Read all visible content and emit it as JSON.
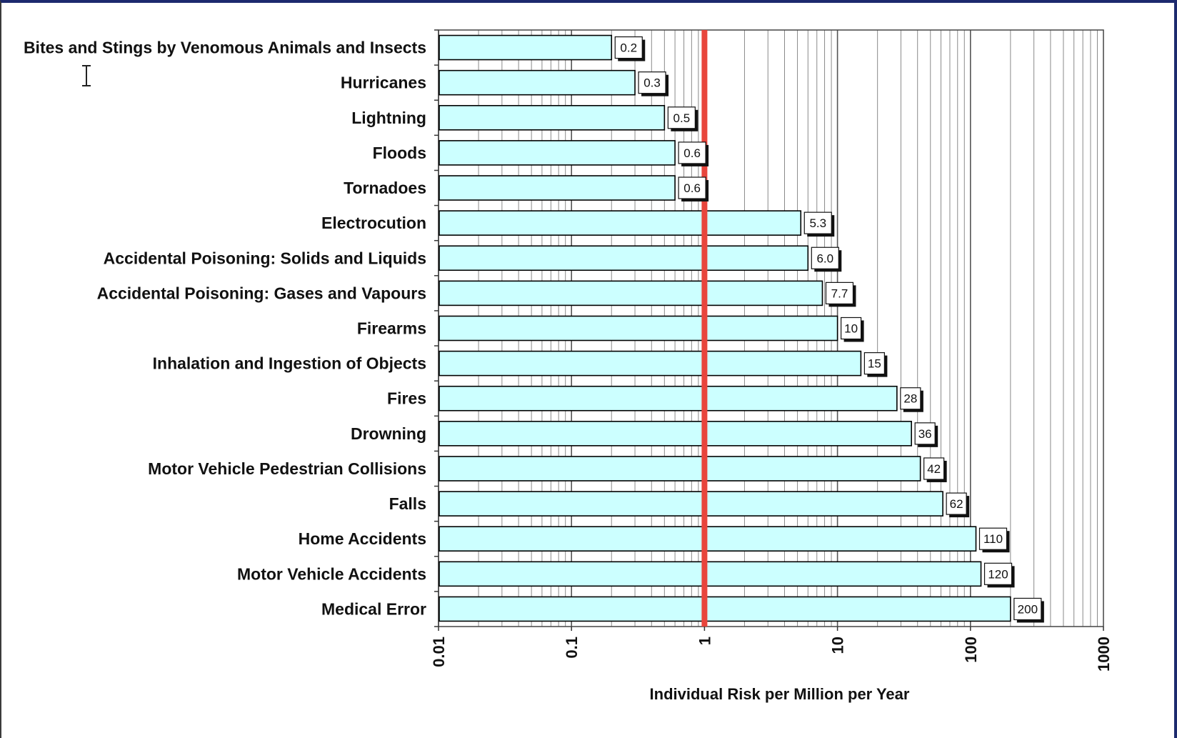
{
  "colors": {
    "bar_fill": "#ccffff",
    "bar_stroke": "#000000",
    "reference_line": "#e8453c",
    "frame": "#1d2a6e"
  },
  "cursor_icon": "text-cursor-icon",
  "chart_data": {
    "type": "bar",
    "orientation": "horizontal",
    "x_scale": "log",
    "xlim": [
      0.01,
      1000
    ],
    "xlabel": "Individual Risk per Million per Year",
    "ylabel": "",
    "title": "",
    "grid": true,
    "legend": "none",
    "reference_line_x": 1,
    "x_ticks": [
      "0.01",
      "0.1",
      "1",
      "10",
      "100",
      "1000"
    ],
    "categories": [
      "Bites and Stings by Venomous Animals and Insects",
      "Hurricanes",
      "Lightning",
      "Floods",
      "Tornadoes",
      "Electrocution",
      "Accidental Poisoning: Solids and Liquids",
      "Accidental Poisoning: Gases and Vapours",
      "Firearms",
      "Inhalation and Ingestion of Objects",
      "Fires",
      "Drowning",
      "Motor Vehicle Pedestrian Collisions",
      "Falls",
      "Home Accidents",
      "Motor Vehicle Accidents",
      "Medical Error"
    ],
    "values": [
      0.2,
      0.3,
      0.5,
      0.6,
      0.6,
      5.3,
      6.0,
      7.7,
      10,
      15,
      28,
      36,
      42,
      62,
      110,
      120,
      200
    ],
    "value_labels": [
      "0.2",
      "0.3",
      "0.5",
      "0.6",
      "0.6",
      "5.3",
      "6.0",
      "7.7",
      "10",
      "15",
      "28",
      "36",
      "42",
      "62",
      "110",
      "120",
      "200"
    ]
  }
}
